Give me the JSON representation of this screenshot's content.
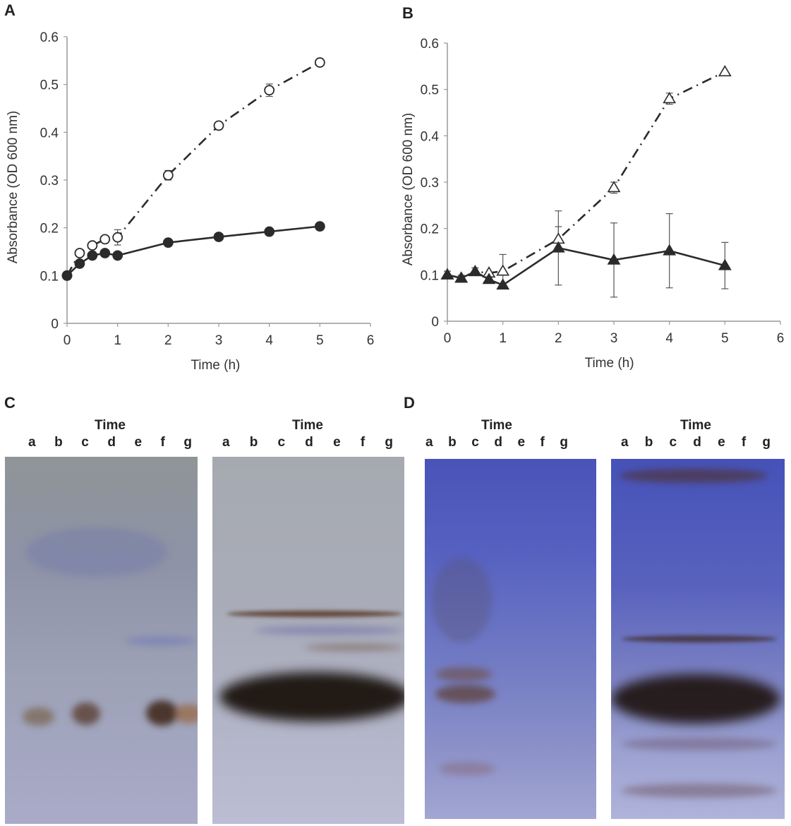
{
  "panels": {
    "a": {
      "letter": "A"
    },
    "b": {
      "letter": "B"
    },
    "c": {
      "letter": "C"
    },
    "d": {
      "letter": "D"
    }
  },
  "chart_data": [
    {
      "panel": "A",
      "type": "line",
      "xlabel": "Time (h)",
      "ylabel": "Absorbance (OD 600 nm)",
      "xlim": [
        0,
        6
      ],
      "ylim": [
        0,
        0.6
      ],
      "xticks": [
        "0",
        "1",
        "2",
        "3",
        "4",
        "5",
        "6"
      ],
      "yticks": [
        "0",
        "0.1",
        "0.2",
        "0.3",
        "0.4",
        "0.5",
        "0.6"
      ],
      "grid": false,
      "x": [
        0,
        0.25,
        0.5,
        0.75,
        1,
        2,
        3,
        4,
        5
      ],
      "series": [
        {
          "name": "open-circle",
          "marker": "circle-open",
          "line": "dash-dot",
          "values": [
            0.1,
            0.147,
            0.163,
            0.176,
            0.18,
            0.31,
            0.414,
            0.488,
            0.546
          ],
          "errors": [
            0.008,
            0.004,
            0.004,
            0.004,
            0.016,
            0.01,
            0.004,
            0.013,
            0.004
          ]
        },
        {
          "name": "filled-circle",
          "marker": "circle-filled",
          "line": "solid",
          "values": [
            0.1,
            0.125,
            0.142,
            0.147,
            0.142,
            0.169,
            0.181,
            0.192,
            0.203
          ],
          "errors": [
            0.004,
            0.004,
            0.004,
            0.004,
            0.004,
            0.004,
            0.004,
            0.004,
            0.004
          ]
        }
      ]
    },
    {
      "panel": "B",
      "type": "line",
      "xlabel": "Time (h)",
      "ylabel": "Absorbance (OD 600 nm)",
      "xlim": [
        0,
        6
      ],
      "ylim": [
        0,
        0.6
      ],
      "xticks": [
        "0",
        "1",
        "2",
        "3",
        "4",
        "5",
        "6"
      ],
      "yticks": [
        "0",
        "0.1",
        "0.2",
        "0.3",
        "0.4",
        "0.5",
        "0.6"
      ],
      "grid": false,
      "x": [
        0,
        0.25,
        0.5,
        0.75,
        1,
        2,
        3,
        4,
        5
      ],
      "series": [
        {
          "name": "open-triangle",
          "marker": "triangle-open",
          "line": "dash-dot",
          "values": [
            0.1,
            0.093,
            0.107,
            0.104,
            0.108,
            0.177,
            0.288,
            0.48,
            0.538
          ],
          "errors": [
            0.008,
            0.006,
            0.008,
            0.004,
            0.036,
            0.027,
            0.012,
            0.012,
            0.004
          ]
        },
        {
          "name": "filled-triangle",
          "marker": "triangle-filled",
          "line": "solid",
          "values": [
            0.1,
            0.093,
            0.107,
            0.09,
            0.078,
            0.158,
            0.132,
            0.152,
            0.12
          ],
          "errors": [
            0.008,
            0.006,
            0.008,
            0.004,
            0.004,
            0.08,
            0.08,
            0.08,
            0.05
          ]
        }
      ]
    }
  ],
  "gels": {
    "c": [
      {
        "title": "Time",
        "lanes": [
          "a",
          "b",
          "c",
          "d",
          "e",
          "f",
          "g"
        ]
      },
      {
        "title": "Time",
        "lanes": [
          "a",
          "b",
          "c",
          "d",
          "e",
          "f",
          "g"
        ]
      }
    ],
    "d": [
      {
        "title": "Time",
        "lanes": [
          "a",
          "b",
          "c",
          "d",
          "e",
          "f",
          "g"
        ]
      },
      {
        "title": "Time",
        "lanes": [
          "a",
          "b",
          "c",
          "d",
          "e",
          "f",
          "g"
        ]
      }
    ]
  },
  "colors": {
    "axis": "#999999",
    "series": "#2b2b2b",
    "gel_c_bg": "#9a9fb0",
    "gel_d_bg": "#7f86c8",
    "band_brown": "#3a2a1e",
    "band_blue": "#3f4fc8"
  }
}
